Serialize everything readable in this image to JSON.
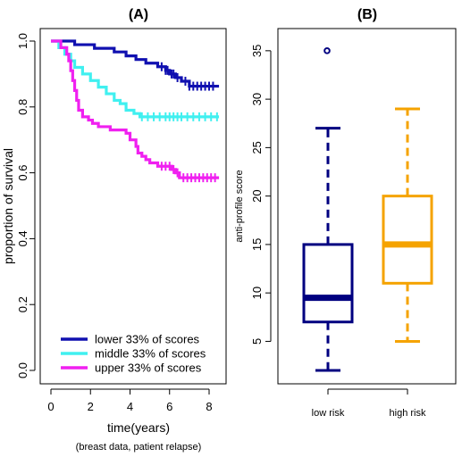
{
  "chart_data": [
    {
      "type": "line",
      "title": "(A)",
      "xlabel": "time(years)",
      "caption": "(breast data, patient relapse)",
      "ylabel": "proportion of survival",
      "xlim": [
        0,
        8.5
      ],
      "ylim": [
        0,
        1.0
      ],
      "xticks": [
        "0",
        "2",
        "4",
        "6",
        "8"
      ],
      "yticks": [
        "0.0",
        "0.2",
        "0.4",
        "0.6",
        "0.8",
        "1.0"
      ],
      "legend_position": "bottom-left",
      "series": [
        {
          "name": "lower 33% of scores",
          "color": "#1010b0",
          "x": [
            0,
            1.2,
            2.2,
            3.2,
            3.8,
            4.3,
            4.8,
            5.4,
            5.8,
            6.0,
            6.3,
            6.6,
            7.0,
            8.5
          ],
          "y": [
            1.0,
            0.989,
            0.978,
            0.967,
            0.955,
            0.944,
            0.933,
            0.922,
            0.911,
            0.9,
            0.889,
            0.878,
            0.863,
            0.863
          ],
          "censor_x": [
            5.6,
            5.8,
            5.9,
            6.1,
            6.2,
            6.4,
            6.8,
            7.0,
            7.2,
            7.4,
            7.6,
            7.8,
            8.0,
            8.2
          ]
        },
        {
          "name": "middle 33% of scores",
          "color": "#40f0f0",
          "x": [
            0,
            0.4,
            0.7,
            1.0,
            1.2,
            1.6,
            2.0,
            2.4,
            2.8,
            3.2,
            3.5,
            3.8,
            4.2,
            4.5,
            8.5
          ],
          "y": [
            1.0,
            0.98,
            0.96,
            0.94,
            0.92,
            0.9,
            0.88,
            0.86,
            0.84,
            0.82,
            0.81,
            0.79,
            0.78,
            0.77,
            0.77
          ],
          "censor_x": [
            4.6,
            4.9,
            5.2,
            5.5,
            5.8,
            6.0,
            6.2,
            6.4,
            6.6,
            6.9,
            7.2,
            7.5,
            7.8,
            8.1,
            8.4
          ]
        },
        {
          "name": "upper 33% of scores",
          "color": "#f020f0",
          "x": [
            0,
            0.5,
            0.8,
            0.9,
            1.0,
            1.1,
            1.2,
            1.3,
            1.4,
            1.6,
            1.9,
            2.1,
            2.4,
            2.7,
            3.0,
            3.8,
            4.0,
            4.3,
            4.4,
            4.6,
            4.8,
            5.0,
            5.4,
            6.1,
            6.3,
            6.5,
            8.5
          ],
          "y": [
            1.0,
            0.98,
            0.96,
            0.94,
            0.91,
            0.88,
            0.85,
            0.82,
            0.79,
            0.77,
            0.76,
            0.75,
            0.74,
            0.74,
            0.73,
            0.72,
            0.7,
            0.68,
            0.66,
            0.65,
            0.64,
            0.63,
            0.62,
            0.61,
            0.6,
            0.585,
            0.585
          ],
          "censor_x": [
            5.6,
            5.8,
            6.0,
            6.2,
            6.4,
            6.7,
            6.9,
            7.1,
            7.3,
            7.5,
            7.7,
            7.9,
            8.1,
            8.3
          ]
        }
      ]
    },
    {
      "type": "box",
      "title": "(B)",
      "ylabel": "anti-profile score",
      "ylim": [
        2,
        36
      ],
      "yticks": [
        "5",
        "10",
        "15",
        "20",
        "25",
        "30",
        "35"
      ],
      "categories": [
        "low risk",
        "high risk"
      ],
      "boxes": [
        {
          "name": "low risk",
          "color": "#000080",
          "whisker_low": 2,
          "q1": 7,
          "median": 9.5,
          "q3": 15,
          "whisker_high": 27,
          "outliers": [
            35
          ]
        },
        {
          "name": "high risk",
          "color": "#f5a300",
          "whisker_low": 5,
          "q1": 11,
          "median": 15,
          "q3": 20,
          "whisker_high": 29,
          "outliers": []
        }
      ]
    }
  ]
}
